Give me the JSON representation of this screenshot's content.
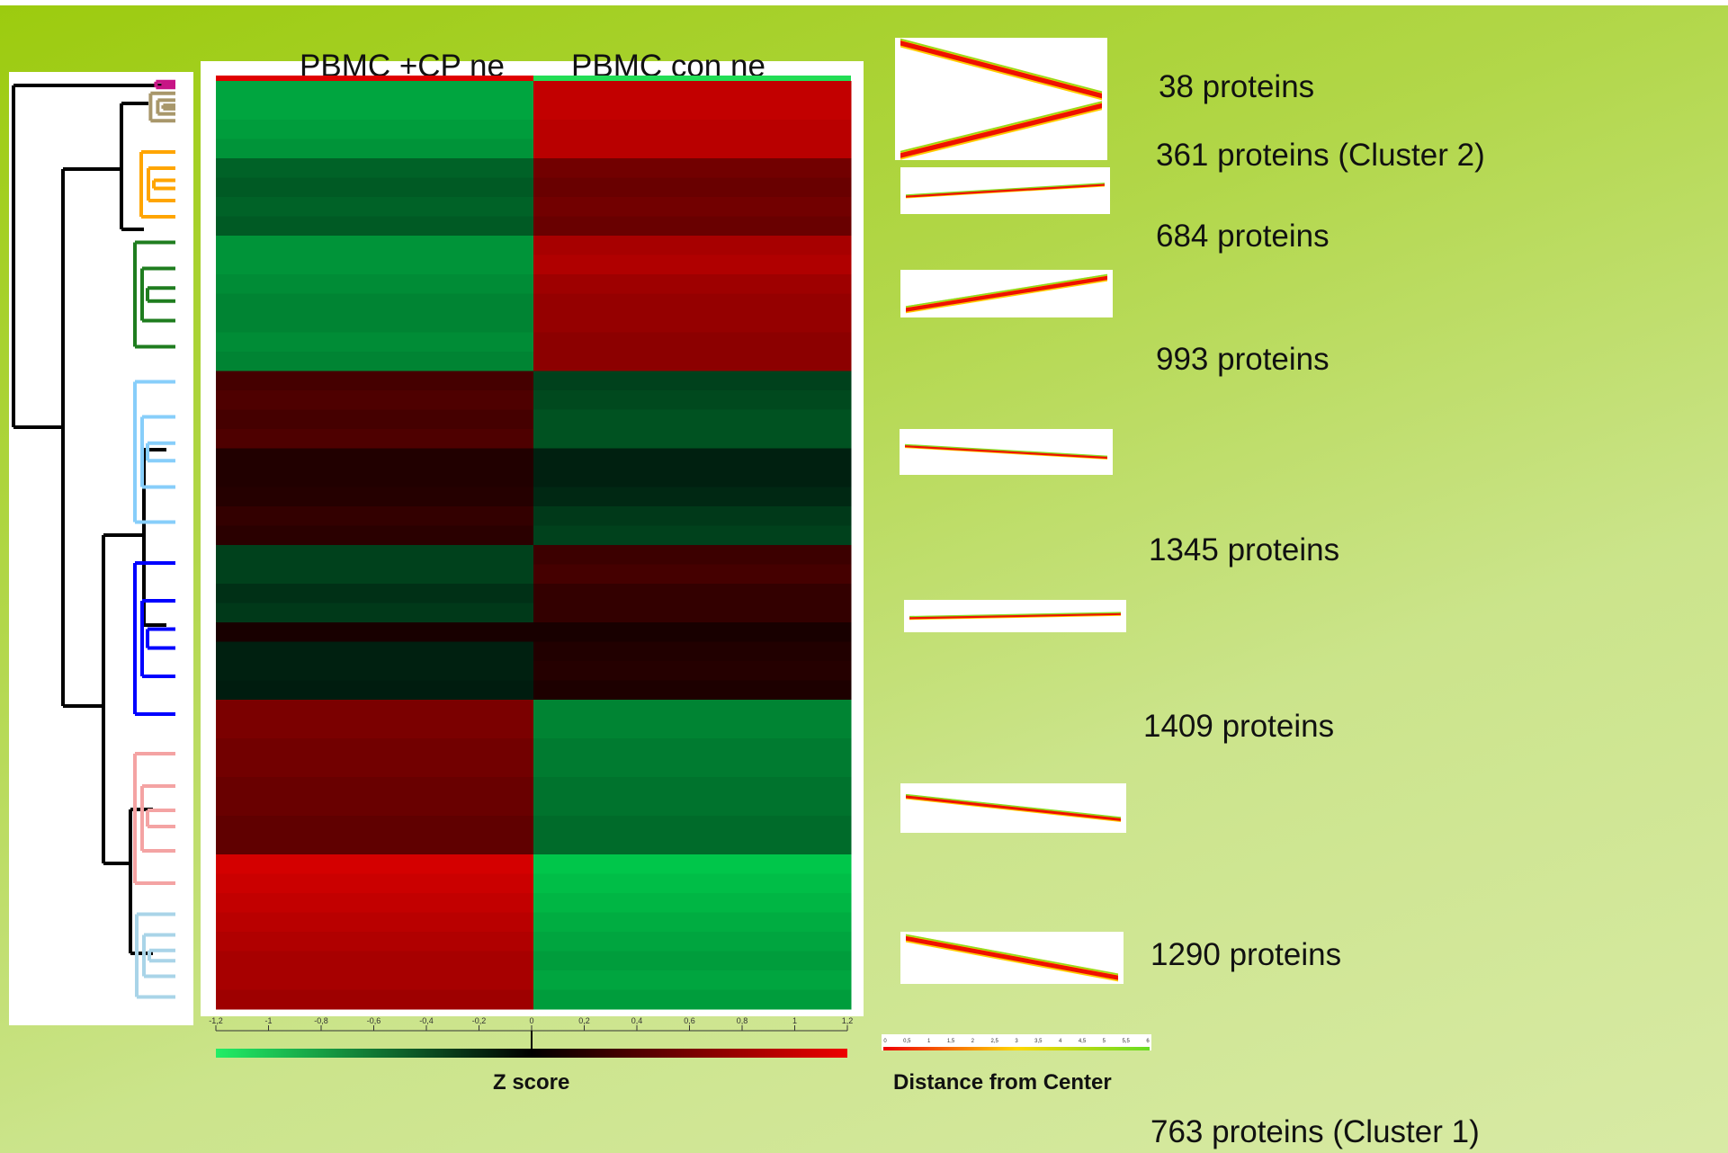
{
  "chart_data": {
    "type": "heatmap",
    "columns": [
      "PBMC +CP ne",
      "PBMC con ne"
    ],
    "rows": [
      {
        "z": [
          -0.9,
          1.0
        ]
      },
      {
        "z": [
          -0.9,
          1.0
        ]
      },
      {
        "z": [
          -0.85,
          0.95
        ]
      },
      {
        "z": [
          -0.8,
          0.95
        ]
      },
      {
        "z": [
          -0.5,
          0.55
        ]
      },
      {
        "z": [
          -0.45,
          0.5
        ]
      },
      {
        "z": [
          -0.5,
          0.55
        ]
      },
      {
        "z": [
          -0.45,
          0.5
        ]
      },
      {
        "z": [
          -0.8,
          0.85
        ]
      },
      {
        "z": [
          -0.8,
          0.9
        ]
      },
      {
        "z": [
          -0.75,
          0.8
        ]
      },
      {
        "z": [
          -0.7,
          0.75
        ]
      },
      {
        "z": [
          -0.7,
          0.75
        ]
      },
      {
        "z": [
          -0.75,
          0.7
        ]
      },
      {
        "z": [
          -0.7,
          0.7
        ]
      },
      {
        "z": [
          0.3,
          -0.3
        ]
      },
      {
        "z": [
          0.35,
          -0.35
        ]
      },
      {
        "z": [
          0.3,
          -0.4
        ]
      },
      {
        "z": [
          0.35,
          -0.4
        ]
      },
      {
        "z": [
          0.1,
          -0.1
        ]
      },
      {
        "z": [
          0.1,
          -0.1
        ]
      },
      {
        "z": [
          0.12,
          -0.15
        ]
      },
      {
        "z": [
          0.2,
          -0.25
        ]
      },
      {
        "z": [
          0.15,
          -0.3
        ]
      },
      {
        "z": [
          -0.3,
          0.25
        ]
      },
      {
        "z": [
          -0.3,
          0.3
        ]
      },
      {
        "z": [
          -0.2,
          0.2
        ]
      },
      {
        "z": [
          -0.25,
          0.2
        ]
      },
      {
        "z": [
          0.05,
          0.05
        ]
      },
      {
        "z": [
          -0.1,
          0.1
        ]
      },
      {
        "z": [
          -0.1,
          0.12
        ]
      },
      {
        "z": [
          -0.08,
          0.08
        ]
      },
      {
        "z": [
          0.6,
          -0.7
        ]
      },
      {
        "z": [
          0.6,
          -0.7
        ]
      },
      {
        "z": [
          0.55,
          -0.65
        ]
      },
      {
        "z": [
          0.55,
          -0.65
        ]
      },
      {
        "z": [
          0.5,
          -0.6
        ]
      },
      {
        "z": [
          0.5,
          -0.6
        ]
      },
      {
        "z": [
          0.45,
          -0.55
        ]
      },
      {
        "z": [
          0.45,
          -0.55
        ]
      },
      {
        "z": [
          1.1,
          -1.1
        ]
      },
      {
        "z": [
          1.05,
          -1.05
        ]
      },
      {
        "z": [
          1.0,
          -1.0
        ]
      },
      {
        "z": [
          0.95,
          -0.95
        ]
      },
      {
        "z": [
          0.9,
          -0.9
        ]
      },
      {
        "z": [
          0.85,
          -0.85
        ]
      },
      {
        "z": [
          0.85,
          -0.9
        ]
      },
      {
        "z": [
          0.8,
          -0.85
        ]
      }
    ],
    "clusters": [
      {
        "label": "38 proteins",
        "color": "#c71585"
      },
      {
        "label": "361 proteins (Cluster 2)",
        "color": "#a8976a"
      },
      {
        "label": "684 proteins",
        "color": "#ffa500"
      },
      {
        "label": "993 proteins",
        "color": "#1f7d1f"
      },
      {
        "label": "1345 proteins",
        "color": "#87cefa"
      },
      {
        "label": "1409 proteins",
        "color": "#0000ff"
      },
      {
        "label": "1290 proteins",
        "color": "#f4a3a3"
      },
      {
        "label": "763 proteins (Cluster 1)",
        "color": "#a9d4e8"
      }
    ],
    "zscore_axis": {
      "title": "Z score",
      "ticks": [
        "-1,2",
        "-1",
        "-0,8",
        "-0,6",
        "-0,4",
        "-0,2",
        "0",
        "0,2",
        "0,4",
        "0,6",
        "0,8",
        "1",
        "1,2"
      ],
      "range": [
        -1.2,
        1.2
      ]
    },
    "distance_axis": {
      "title": "Distance from Center",
      "ticks": [
        "0",
        "0,5",
        "1",
        "1,5",
        "2",
        "2,5",
        "3",
        "3,5",
        "4",
        "4,5",
        "5",
        "5,5",
        "6"
      ]
    },
    "trend_plots": [
      {
        "start": 1.0,
        "end": -1.0
      },
      {
        "start": -1.0,
        "end": 1.0
      },
      {
        "start": -0.3,
        "end": 0.3
      },
      {
        "start": -0.8,
        "end": 0.8
      },
      {
        "start": 0.3,
        "end": -0.3
      },
      {
        "start": -0.15,
        "end": 0.15
      },
      {
        "start": 0.55,
        "end": -0.55
      },
      {
        "start": 0.9,
        "end": -0.9
      }
    ]
  }
}
